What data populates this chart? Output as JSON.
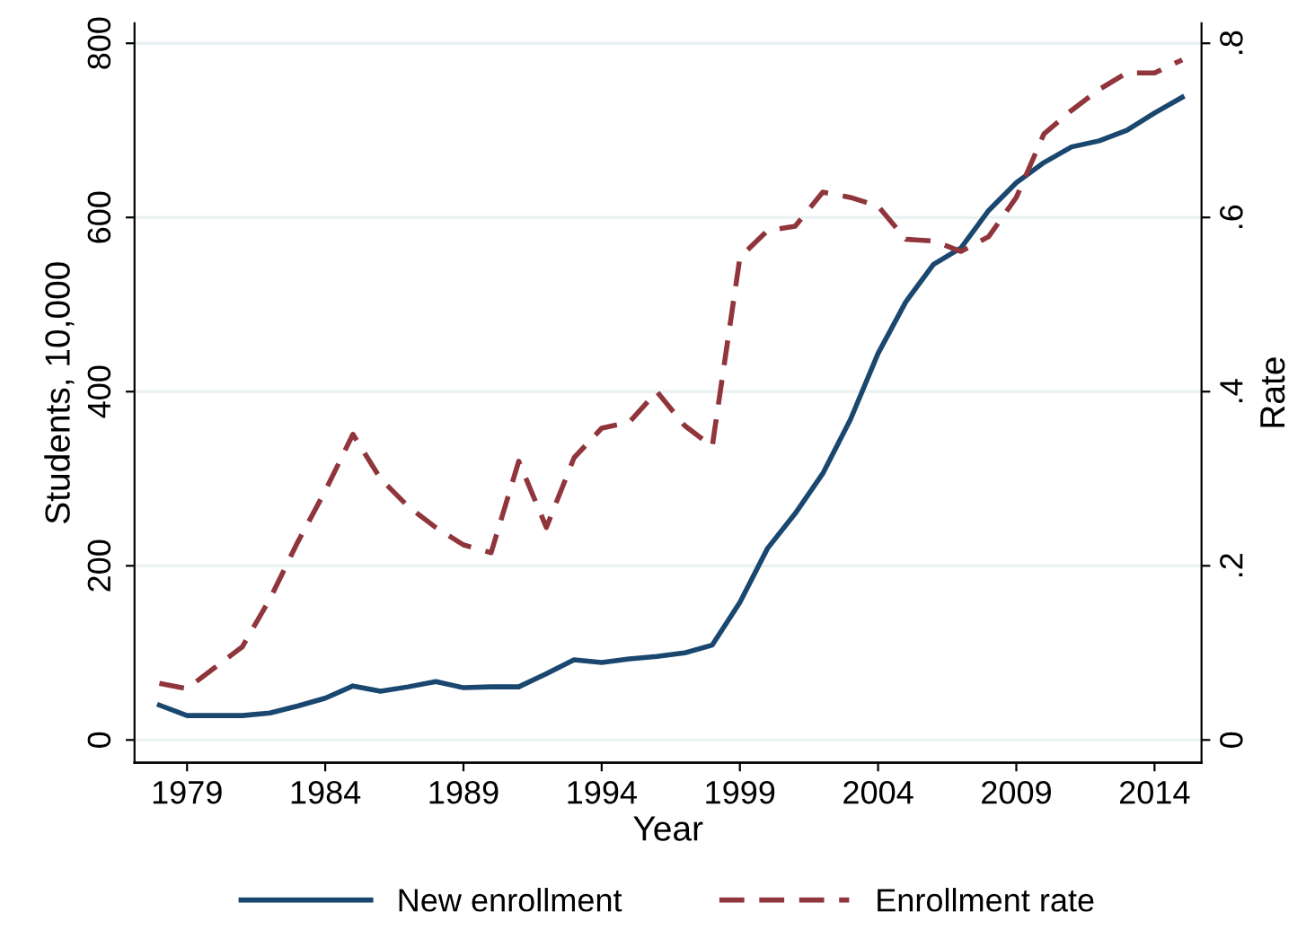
{
  "chart_data": {
    "type": "line",
    "xlabel": "Year",
    "ylabel": "Students, 10,000",
    "y2label": "Rate",
    "x": [
      1978,
      1979,
      1980,
      1981,
      1982,
      1983,
      1984,
      1985,
      1986,
      1987,
      1988,
      1989,
      1990,
      1991,
      1992,
      1993,
      1994,
      1995,
      1996,
      1997,
      1998,
      1999,
      2000,
      2001,
      2002,
      2003,
      2004,
      2005,
      2006,
      2007,
      2008,
      2009,
      2010,
      2011,
      2012,
      2013,
      2014,
      2015
    ],
    "series": [
      {
        "name": "New enrollment",
        "color": "#1a476f",
        "line_style": "solid",
        "values": [
          40,
          28,
          28,
          28,
          31,
          39,
          48,
          62,
          56,
          61,
          67,
          60,
          61,
          61,
          76,
          92,
          89,
          93,
          96,
          100,
          109,
          158,
          220,
          260,
          306,
          368,
          444,
          503,
          546,
          565,
          608,
          640,
          663,
          681,
          688,
          700,
          720,
          738
        ]
      },
      {
        "name": "Enrollment rate",
        "color": "#90353b",
        "line_style": "dashed",
        "axis": "y2",
        "values": [
          0.065,
          0.059,
          0.083,
          0.107,
          0.162,
          0.227,
          0.286,
          0.351,
          0.3,
          0.268,
          0.244,
          0.224,
          0.215,
          0.32,
          0.244,
          0.324,
          0.358,
          0.365,
          0.4,
          0.361,
          0.337,
          0.554,
          0.585,
          0.59,
          0.629,
          0.623,
          0.613,
          0.575,
          0.573,
          0.561,
          0.578,
          0.623,
          0.696,
          0.723,
          0.747,
          0.766,
          0.766,
          0.781
        ]
      }
    ],
    "xlim": [
      1977.1,
      2015.7
    ],
    "xticks": [
      1979,
      1984,
      1989,
      1994,
      1999,
      2004,
      2009,
      2014
    ],
    "ylim": [
      -26,
      823
    ],
    "yticks": [
      0,
      200,
      400,
      600,
      800
    ],
    "y2lim": [
      -0.026,
      0.823
    ],
    "y2ticks": [
      {
        "value": 0,
        "label": "0"
      },
      {
        "value": 0.2,
        "label": ".2"
      },
      {
        "value": 0.4,
        "label": ".4"
      },
      {
        "value": 0.6,
        "label": ".6"
      },
      {
        "value": 0.8,
        "label": ".8"
      }
    ],
    "grid": "y",
    "legend": "bottom",
    "marker": "none"
  }
}
